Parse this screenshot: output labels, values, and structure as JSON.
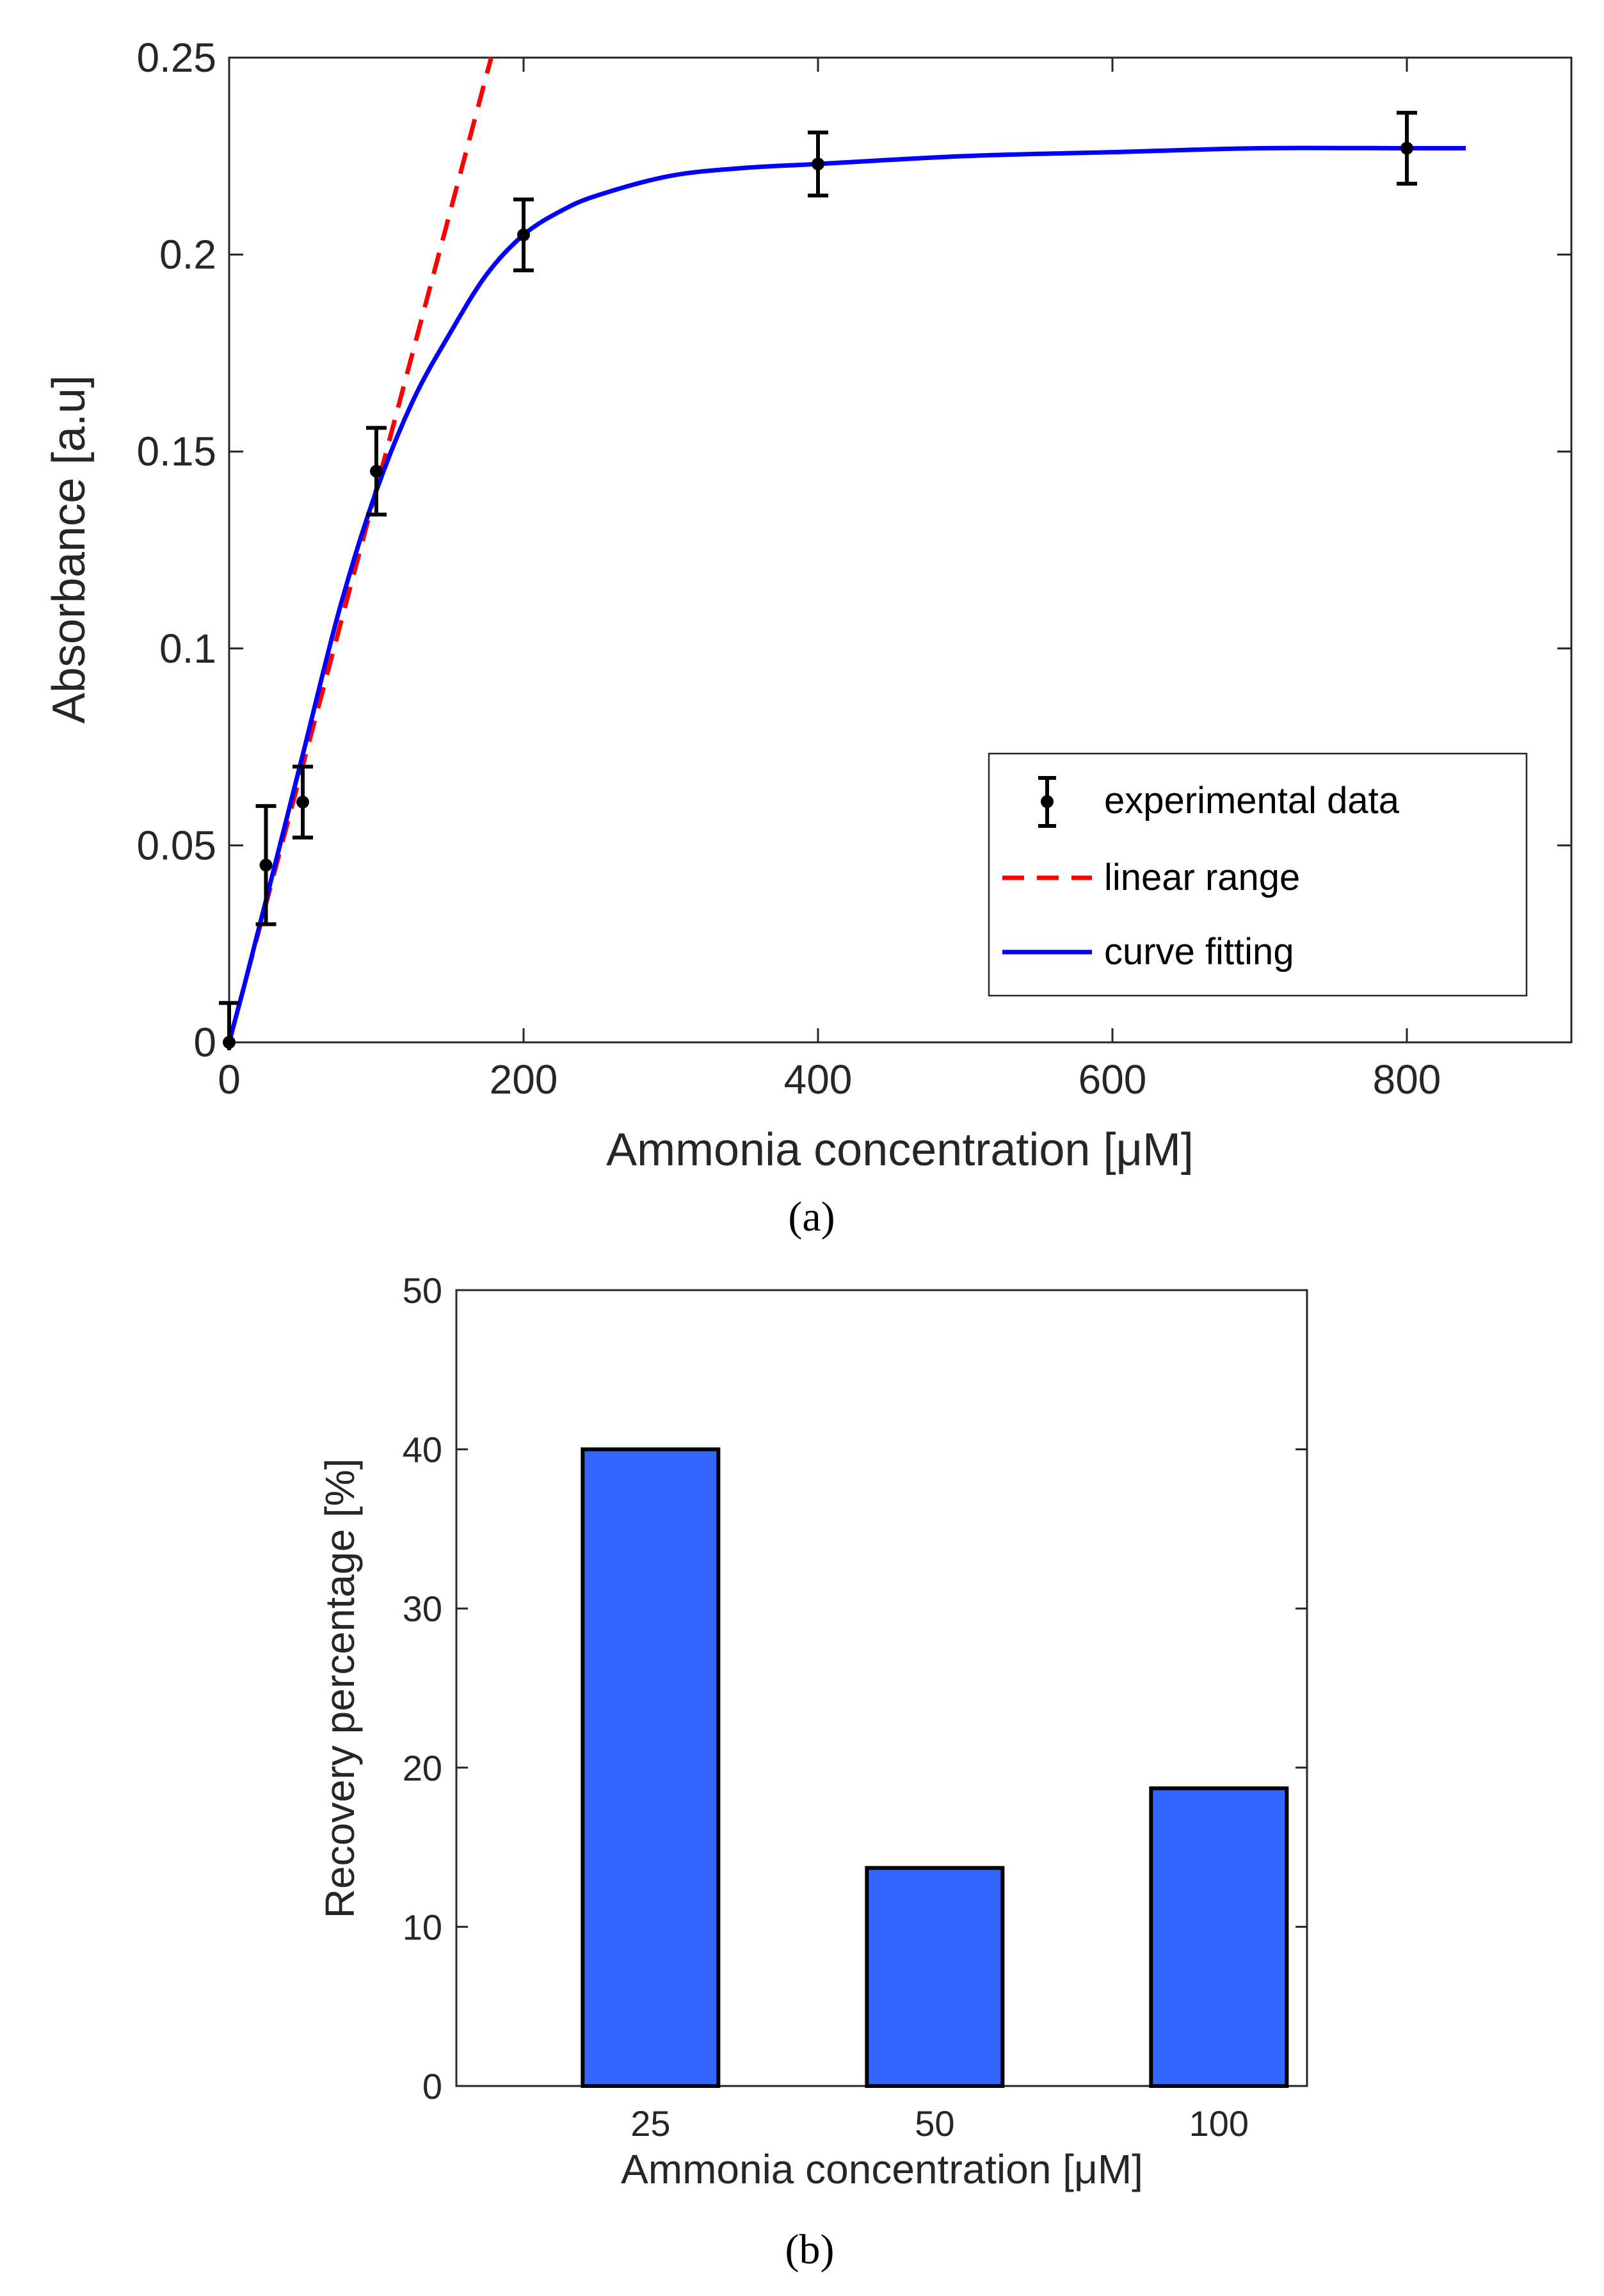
{
  "chart_data": [
    {
      "panel_label": "(a)",
      "type": "line",
      "xlabel": "Ammonia concentration [μM]",
      "ylabel": "Absorbance [a.u]",
      "xlim": [
        0,
        900
      ],
      "ylim": [
        0,
        0.25
      ],
      "xticks": [
        "0",
        "200",
        "400",
        "600",
        "800"
      ],
      "yticks": [
        "0",
        "0.05",
        "0.1",
        "0.15",
        "0.2",
        "0.25"
      ],
      "legend_position": "bottom-right",
      "series": [
        {
          "name": "experimental data",
          "style": "errorbar",
          "color": "#000000",
          "points": [
            {
              "x": 0,
              "y": 0.0,
              "err": 0.01
            },
            {
              "x": 25,
              "y": 0.045,
              "err": 0.015
            },
            {
              "x": 50,
              "y": 0.061,
              "err": 0.009
            },
            {
              "x": 100,
              "y": 0.145,
              "err": 0.011
            },
            {
              "x": 200,
              "y": 0.205,
              "err": 0.009
            },
            {
              "x": 400,
              "y": 0.223,
              "err": 0.008
            },
            {
              "x": 800,
              "y": 0.227,
              "err": 0.009
            }
          ]
        },
        {
          "name": "linear range",
          "style": "dashed",
          "color": "#ff0000",
          "x": [
            0,
            178
          ],
          "y": [
            0.0,
            0.25
          ]
        },
        {
          "name": "curve fitting",
          "style": "solid",
          "color": "#0000ff",
          "x": [
            0,
            10,
            25,
            50,
            75,
            100,
            125,
            150,
            175,
            200,
            225,
            250,
            300,
            350,
            400,
            500,
            600,
            700,
            800,
            840
          ],
          "y": [
            0.0,
            0.014,
            0.036,
            0.073,
            0.11,
            0.14,
            0.163,
            0.18,
            0.195,
            0.205,
            0.211,
            0.215,
            0.22,
            0.222,
            0.223,
            0.225,
            0.226,
            0.227,
            0.227,
            0.227
          ]
        }
      ]
    },
    {
      "panel_label": "(b)",
      "type": "bar",
      "xlabel": "Ammonia concentration [μM]",
      "ylabel": "Recovery percentage [%]",
      "categories": [
        "25",
        "50",
        "100"
      ],
      "values": [
        40,
        13.7,
        18.7
      ],
      "ylim": [
        0,
        50
      ],
      "yticks": [
        "0",
        "10",
        "20",
        "30",
        "40",
        "50"
      ],
      "bar_color": "#3366ff"
    }
  ]
}
